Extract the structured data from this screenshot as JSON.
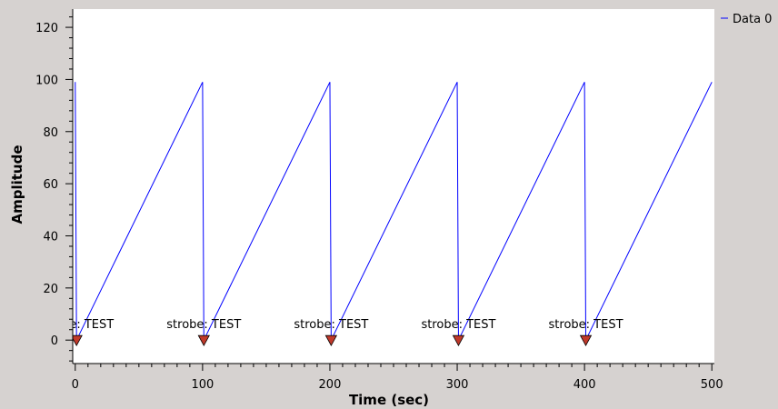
{
  "chart_data": {
    "type": "line",
    "xlabel": "Time (sec)",
    "ylabel": "Amplitude",
    "xlim": [
      -2,
      502
    ],
    "ylim": [
      -9,
      127
    ],
    "x_ticks": [
      0,
      100,
      200,
      300,
      400,
      500
    ],
    "y_ticks": [
      0,
      20,
      40,
      60,
      80,
      100,
      120
    ],
    "grid": false,
    "legend_position": "top-right",
    "series": [
      {
        "name": "Data 0",
        "color": "#0000ff",
        "x": [
          0,
          1,
          100,
          101,
          200,
          201,
          300,
          301,
          400,
          401,
          500
        ],
        "y": [
          99,
          0,
          99,
          0,
          99,
          0,
          99,
          0,
          99,
          0,
          99
        ]
      }
    ],
    "tags": [
      {
        "x": 1,
        "y": 0,
        "label": "strobe: TEST"
      },
      {
        "x": 101,
        "y": 0,
        "label": "strobe: TEST"
      },
      {
        "x": 201,
        "y": 0,
        "label": "strobe: TEST"
      },
      {
        "x": 301,
        "y": 0,
        "label": "strobe: TEST"
      },
      {
        "x": 401,
        "y": 0,
        "label": "strobe: TEST"
      }
    ],
    "tag_marker_color": "#c0392b"
  }
}
